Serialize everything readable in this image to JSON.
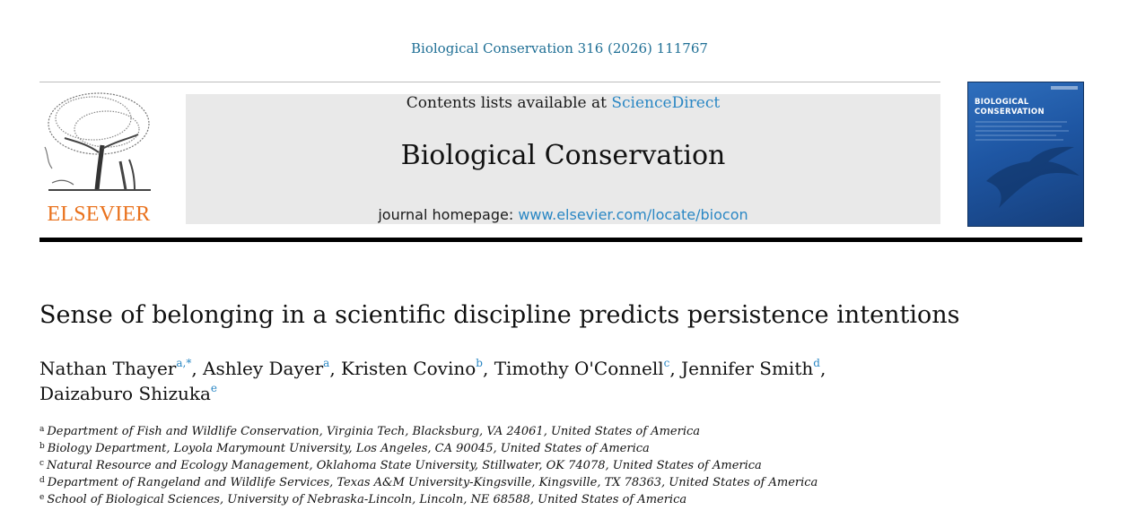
{
  "citation": "Biological Conservation 316 (2026) 111767",
  "publisher_logo_text": "ELSEVIER",
  "header": {
    "contents_prefix": "Contents lists available at ",
    "contents_link": "ScienceDirect",
    "journal_title": "Biological Conservation",
    "homepage_prefix": "journal homepage: ",
    "homepage_link": "www.elsevier.com/locate/biocon"
  },
  "cover": {
    "title_line1": "BIOLOGICAL",
    "title_line2": "CONSERVATION"
  },
  "article": {
    "title": "Sense of belonging in a scientific discipline predicts persistence intentions",
    "authors": [
      {
        "name": "Nathan Thayer",
        "marks": "a,*",
        "sep": ","
      },
      {
        "name": "Ashley Dayer",
        "marks": "a",
        "sep": ","
      },
      {
        "name": "Kristen Covino",
        "marks": "b",
        "sep": ","
      },
      {
        "name": "Timothy O'Connell",
        "marks": "c",
        "sep": ","
      },
      {
        "name": "Jennifer Smith",
        "marks": "d",
        "sep": ","
      },
      {
        "name": "Daizaburo Shizuka",
        "marks": "e",
        "sep": ""
      }
    ],
    "affiliations": [
      {
        "mark": "a",
        "text": "Department of Fish and Wildlife Conservation, Virginia Tech, Blacksburg, VA 24061, United States of America"
      },
      {
        "mark": "b",
        "text": "Biology Department, Loyola Marymount University, Los Angeles, CA 90045, United States of America"
      },
      {
        "mark": "c",
        "text": "Natural Resource and Ecology Management, Oklahoma State University, Stillwater, OK 74078, United States of America"
      },
      {
        "mark": "d",
        "text": "Department of Rangeland and Wildlife Services, Texas A&M University-Kingsville, Kingsville, TX 78363, United States of America"
      },
      {
        "mark": "e",
        "text": "School of Biological Sciences, University of Nebraska-Lincoln, Lincoln, NE 68588, United States of America"
      }
    ]
  },
  "colors": {
    "link": "#2a87c4",
    "citation": "#1f6f95",
    "elsevier_orange": "#e9711c",
    "header_bg": "#e9e9e9",
    "cover_blue": "#1e56a3"
  }
}
